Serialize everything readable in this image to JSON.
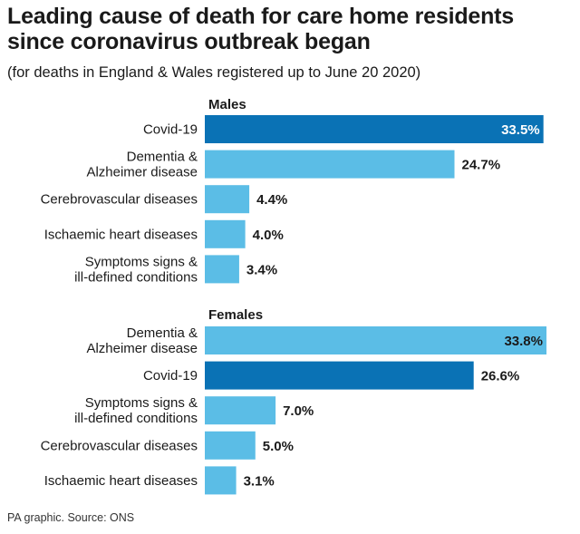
{
  "title": "Leading cause of death for care home residents since coronavirus outbreak began",
  "subtitle": "(for deaths in England & Wales registered up to June 20 2020)",
  "source": "PA graphic. Source: ONS",
  "colors": {
    "highlight": "#0a72b5",
    "normal": "#5bbde6"
  },
  "chart_data": [
    {
      "type": "bar",
      "orientation": "horizontal",
      "title": "Males",
      "unit": "%",
      "categories": [
        [
          "Covid-19"
        ],
        [
          "Dementia &",
          "Alzheimer disease"
        ],
        [
          "Cerebrovascular diseases"
        ],
        [
          "Ischaemic heart diseases"
        ],
        [
          "Symptoms signs &",
          "ill-defined conditions"
        ]
      ],
      "values": [
        33.5,
        24.7,
        4.4,
        4.0,
        3.4
      ],
      "value_labels": [
        "33.5%",
        "24.7%",
        "4.4%",
        "4.0%",
        "3.4%"
      ],
      "highlight": [
        true,
        false,
        false,
        false,
        false
      ]
    },
    {
      "type": "bar",
      "orientation": "horizontal",
      "title": "Females",
      "unit": "%",
      "categories": [
        [
          "Dementia &",
          "Alzheimer disease"
        ],
        [
          "Covid-19"
        ],
        [
          "Symptoms signs &",
          "ill-defined conditions"
        ],
        [
          "Cerebrovascular diseases"
        ],
        [
          "Ischaemic heart diseases"
        ]
      ],
      "values": [
        33.8,
        26.6,
        7.0,
        5.0,
        3.1
      ],
      "value_labels": [
        "33.8%",
        "26.6%",
        "7.0%",
        "5.0%",
        "3.1%"
      ],
      "highlight": [
        false,
        true,
        false,
        false,
        false
      ]
    }
  ]
}
